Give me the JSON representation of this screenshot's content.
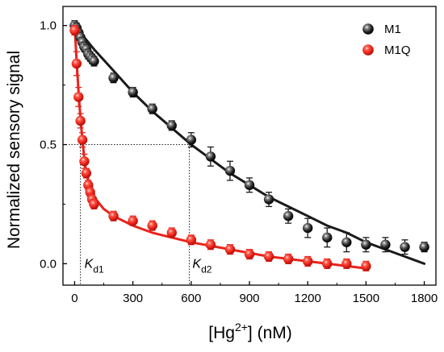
{
  "chart_data": {
    "type": "scatter",
    "xlabel": {
      "prefix": "[Hg",
      "sup": "2+",
      "suffix": "] (nM)"
    },
    "ylabel": "Normalized sensory signal",
    "xlim": [
      -60,
      1860
    ],
    "ylim": [
      -0.09,
      1.08
    ],
    "xticks": [
      0,
      300,
      600,
      900,
      1200,
      1500,
      1800
    ],
    "xtick_labels": [
      "0",
      "300",
      "600",
      "900",
      "1200",
      "1500",
      "1800"
    ],
    "yticks": [
      0.0,
      0.5,
      1.0
    ],
    "ytick_labels": [
      "0.0",
      "0.5",
      "1.0"
    ],
    "grid": false,
    "legend_position": "top-right",
    "series": [
      {
        "name": "M1",
        "color": "#1a1a1a",
        "marker": "sphere",
        "x": [
          0,
          10,
          20,
          30,
          40,
          50,
          60,
          70,
          80,
          90,
          100,
          200,
          300,
          400,
          500,
          600,
          700,
          800,
          900,
          1000,
          1100,
          1200,
          1300,
          1400,
          1500,
          1600,
          1700,
          1800
        ],
        "y": [
          1.0,
          0.99,
          0.97,
          0.95,
          0.93,
          0.91,
          0.9,
          0.88,
          0.87,
          0.86,
          0.85,
          0.78,
          0.72,
          0.65,
          0.58,
          0.52,
          0.45,
          0.39,
          0.33,
          0.27,
          0.2,
          0.15,
          0.11,
          0.09,
          0.08,
          0.08,
          0.07,
          0.07
        ],
        "yerr": [
          0.02,
          0.02,
          0.02,
          0.02,
          0.02,
          0.02,
          0.02,
          0.02,
          0.02,
          0.02,
          0.02,
          0.02,
          0.02,
          0.02,
          0.02,
          0.03,
          0.04,
          0.04,
          0.03,
          0.03,
          0.03,
          0.04,
          0.04,
          0.04,
          0.03,
          0.03,
          0.03,
          0.02
        ]
      },
      {
        "name": "M1Q",
        "color": "#e8231c",
        "marker": "sphere",
        "x": [
          0,
          10,
          20,
          30,
          40,
          50,
          60,
          70,
          80,
          90,
          100,
          200,
          300,
          400,
          500,
          600,
          700,
          800,
          900,
          1000,
          1100,
          1200,
          1300,
          1400,
          1500
        ],
        "y": [
          0.98,
          0.84,
          0.7,
          0.6,
          0.52,
          0.43,
          0.38,
          0.33,
          0.3,
          0.27,
          0.25,
          0.2,
          0.18,
          0.16,
          0.13,
          0.1,
          0.08,
          0.06,
          0.04,
          0.03,
          0.02,
          0.01,
          0.0,
          0.0,
          -0.01
        ],
        "yerr": [
          0.02,
          0.05,
          0.04,
          0.03,
          0.03,
          0.03,
          0.02,
          0.02,
          0.02,
          0.02,
          0.02,
          0.02,
          0.02,
          0.02,
          0.02,
          0.02,
          0.02,
          0.02,
          0.02,
          0.02,
          0.02,
          0.02,
          0.02,
          0.02,
          0.02
        ]
      }
    ],
    "fit_curves": [
      {
        "series": "M1",
        "x": [
          0,
          100,
          200,
          300,
          400,
          500,
          600,
          700,
          800,
          900,
          1000,
          1100,
          1200,
          1300,
          1400,
          1500,
          1600,
          1700,
          1800
        ],
        "y": [
          1.0,
          0.9,
          0.81,
          0.72,
          0.64,
          0.57,
          0.5,
          0.44,
          0.38,
          0.33,
          0.28,
          0.24,
          0.2,
          0.16,
          0.13,
          0.09,
          0.06,
          0.03,
          0.0
        ]
      },
      {
        "series": "M1Q",
        "x": [
          0,
          10,
          20,
          30,
          40,
          50,
          60,
          80,
          100,
          150,
          200,
          300,
          400,
          500,
          600,
          800,
          1000,
          1200,
          1400,
          1500
        ],
        "y": [
          1.0,
          0.86,
          0.72,
          0.61,
          0.52,
          0.44,
          0.38,
          0.32,
          0.28,
          0.23,
          0.2,
          0.16,
          0.13,
          0.11,
          0.09,
          0.06,
          0.03,
          0.01,
          -0.01,
          -0.02
        ]
      }
    ],
    "annotations": [
      {
        "main": "K",
        "sub": "d1",
        "x": 30,
        "y": 0.5
      },
      {
        "main": "K",
        "sub": "d2",
        "x": 590,
        "y": 0.5
      }
    ]
  }
}
